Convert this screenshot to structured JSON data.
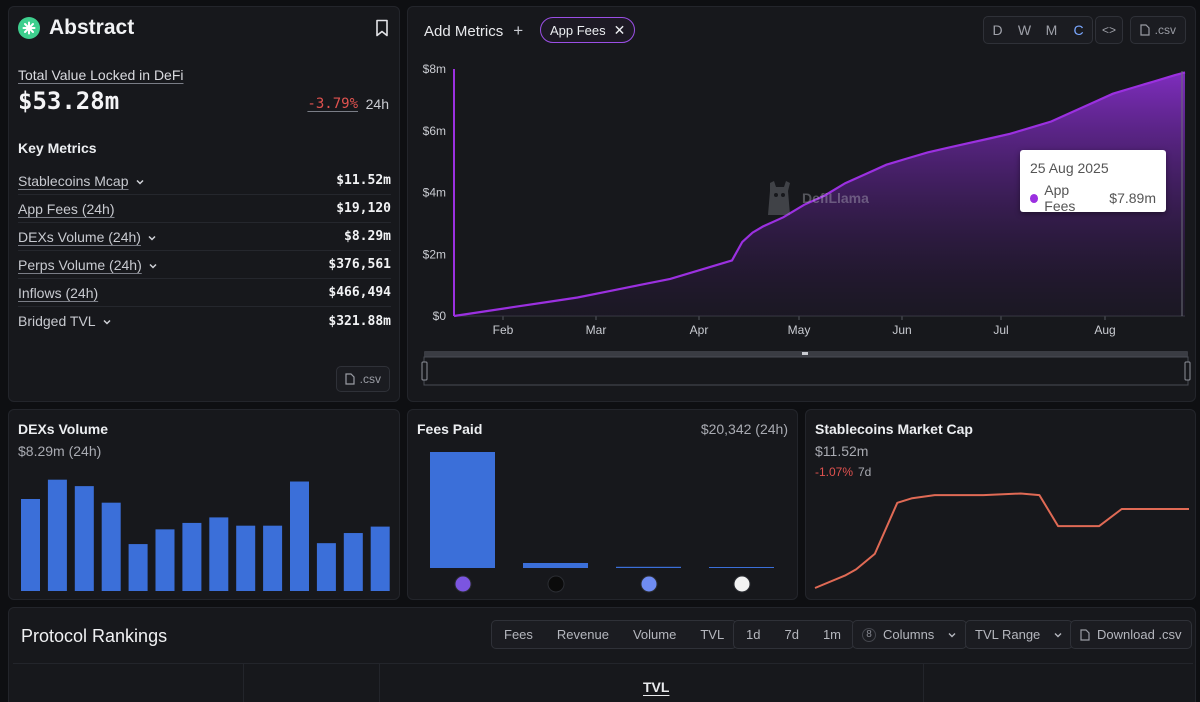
{
  "protocol": {
    "name": "Abstract",
    "tvl_label": "Total Value Locked in DeFi",
    "tvl_value": "$53.28m",
    "tvl_change": "-3.79%",
    "tvl_period": "24h"
  },
  "key_metrics": {
    "title": "Key Metrics",
    "rows": [
      {
        "label": "Stablecoins Mcap",
        "value": "$11.52m",
        "dropdown": true
      },
      {
        "label": "App Fees (24h)",
        "value": "$19,120",
        "dropdown": false
      },
      {
        "label": "DEXs Volume (24h)",
        "value": "$8.29m",
        "dropdown": true
      },
      {
        "label": "Perps Volume (24h)",
        "value": "$376,561",
        "dropdown": true
      },
      {
        "label": "Inflows (24h)",
        "value": "$466,494",
        "dropdown": false
      },
      {
        "label": "Bridged TVL",
        "value": "$321.88m",
        "dropdown": true
      }
    ],
    "csv_label": ".csv"
  },
  "main_chart": {
    "add_metrics_label": "Add Metrics",
    "selected_metric": "App Fees",
    "periods": [
      "D",
      "W",
      "M",
      "C"
    ],
    "active_period": "C",
    "embed_label": "<>",
    "csv_label": ".csv",
    "watermark": "DefiLlama",
    "tooltip": {
      "date": "25 Aug 2025",
      "series": "App Fees",
      "value": "$7.89m"
    },
    "line_color": "#9b30e0"
  },
  "chart_data": [
    {
      "type": "area",
      "series": [
        {
          "name": "App Fees",
          "x": [
            0,
            3,
            6,
            9,
            12,
            15,
            18,
            21,
            24,
            27,
            28,
            29,
            30,
            32,
            34,
            36,
            38,
            40,
            42,
            44,
            46,
            48,
            50,
            52,
            54,
            56,
            58,
            60,
            62,
            64,
            66,
            68,
            70,
            71
          ],
          "values": [
            0,
            0.15,
            0.3,
            0.45,
            0.6,
            0.8,
            1.0,
            1.2,
            1.5,
            1.8,
            2.4,
            2.7,
            2.9,
            3.2,
            3.6,
            3.9,
            4.3,
            4.6,
            4.9,
            5.1,
            5.3,
            5.45,
            5.6,
            5.75,
            5.9,
            6.1,
            6.3,
            6.6,
            6.9,
            7.2,
            7.4,
            7.6,
            7.8,
            7.89
          ]
        }
      ],
      "x_ticks": [
        "Feb",
        "Mar",
        "Apr",
        "May",
        "Jun",
        "Jul",
        "Aug"
      ],
      "y_ticks": [
        "$0",
        "$2m",
        "$4m",
        "$6m",
        "$8m"
      ],
      "ylim": [
        0,
        8
      ]
    },
    {
      "type": "bar",
      "title": "DEXs Volume",
      "values": [
        100,
        121,
        114,
        96,
        51,
        67,
        74,
        80,
        71,
        71,
        119,
        52,
        63,
        70
      ]
    },
    {
      "type": "bar",
      "title": "Fees Paid",
      "values": [
        19120,
        800,
        200,
        100
      ]
    },
    {
      "type": "line",
      "title": "Stablecoins Market Cap",
      "values": [
        0,
        8,
        12,
        22,
        55,
        58,
        60,
        60,
        61,
        60,
        40,
        40,
        51,
        51
      ],
      "line_color": "#e06a55"
    }
  ],
  "dex_card": {
    "title": "DEXs Volume",
    "subtitle": "$8.29m (24h)"
  },
  "fees_card": {
    "title": "Fees Paid",
    "total": "$20,342 (24h)"
  },
  "stable_card": {
    "title": "Stablecoins Market Cap",
    "value": "$11.52m",
    "change": "-1.07%",
    "period": "7d"
  },
  "rankings": {
    "title": "Protocol Rankings",
    "metric_tabs": [
      "Fees",
      "Revenue",
      "Volume",
      "TVL"
    ],
    "range_tabs": [
      "1d",
      "7d",
      "1m"
    ],
    "columns_count": "8",
    "columns_label": "Columns",
    "tvl_range_label": "TVL Range",
    "download_label": "Download .csv",
    "header_tvl": "TVL"
  }
}
